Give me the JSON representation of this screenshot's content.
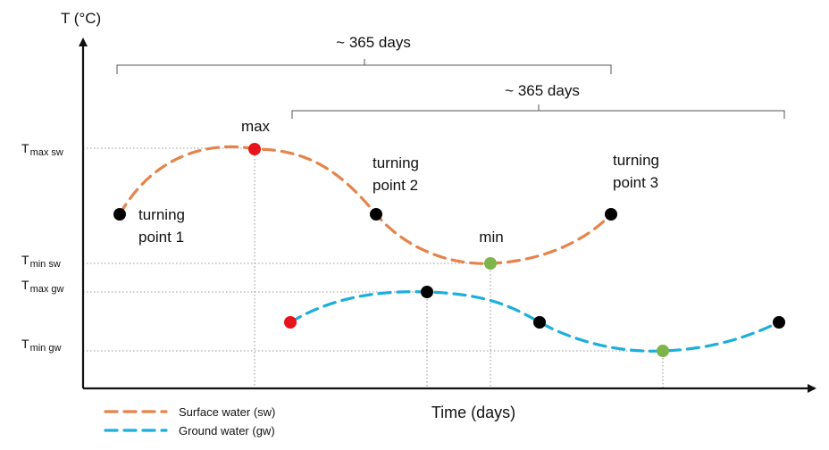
{
  "y_axis_title": "T (°C)",
  "x_axis_title": "Time (days)",
  "y_labels": [
    {
      "main": "T",
      "sub": "max sw"
    },
    {
      "main": "T",
      "sub": "min sw"
    },
    {
      "main": "T",
      "sub": "max gw"
    },
    {
      "main": "T",
      "sub": "min gw"
    }
  ],
  "brackets": [
    {
      "label": "~ 365 days"
    },
    {
      "label": "~ 365 days"
    }
  ],
  "annotations": {
    "max": "max",
    "min": "min",
    "tp1_line1": "turning",
    "tp1_line2": "point 1",
    "tp2_line1": "turning",
    "tp2_line2": "point 2",
    "tp3_line1": "turning",
    "tp3_line2": "point 3"
  },
  "legend": [
    {
      "label": "Surface water (sw)",
      "color": "#E5834A"
    },
    {
      "label": "Ground water (gw)",
      "color": "#1CAEDC"
    }
  ],
  "colors": {
    "surface_water": "#E5834A",
    "ground_water": "#1CAEDC",
    "max_point": "#E8141B",
    "min_point": "#7DB54B",
    "turning_point": "#000000",
    "axis": "#111111"
  }
}
